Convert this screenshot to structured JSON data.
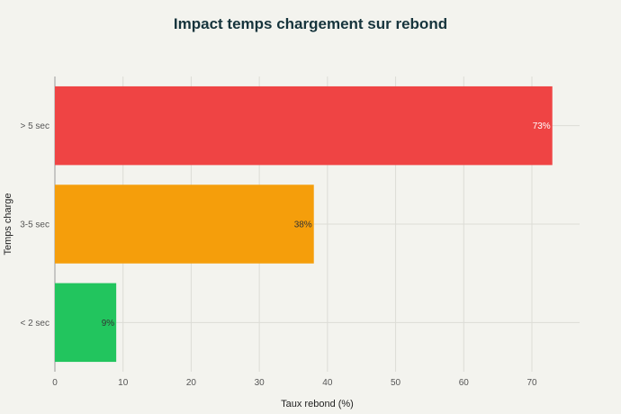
{
  "chart_data": {
    "type": "bar",
    "orientation": "horizontal",
    "title": "Impact temps chargement sur rebond",
    "xlabel": "Taux rebond (%)",
    "ylabel": "Temps charge",
    "categories": [
      "> 5 sec",
      "3-5 sec",
      "< 2 sec"
    ],
    "values": [
      73,
      38,
      9
    ],
    "data_labels": [
      "73%",
      "38%",
      "9%"
    ],
    "colors": [
      "#ef4444",
      "#f59e0b",
      "#22c55e"
    ],
    "xlim": [
      0,
      77
    ],
    "xticks": [
      0,
      10,
      20,
      30,
      40,
      50,
      60,
      70
    ],
    "grid": true,
    "legend": "none"
  }
}
